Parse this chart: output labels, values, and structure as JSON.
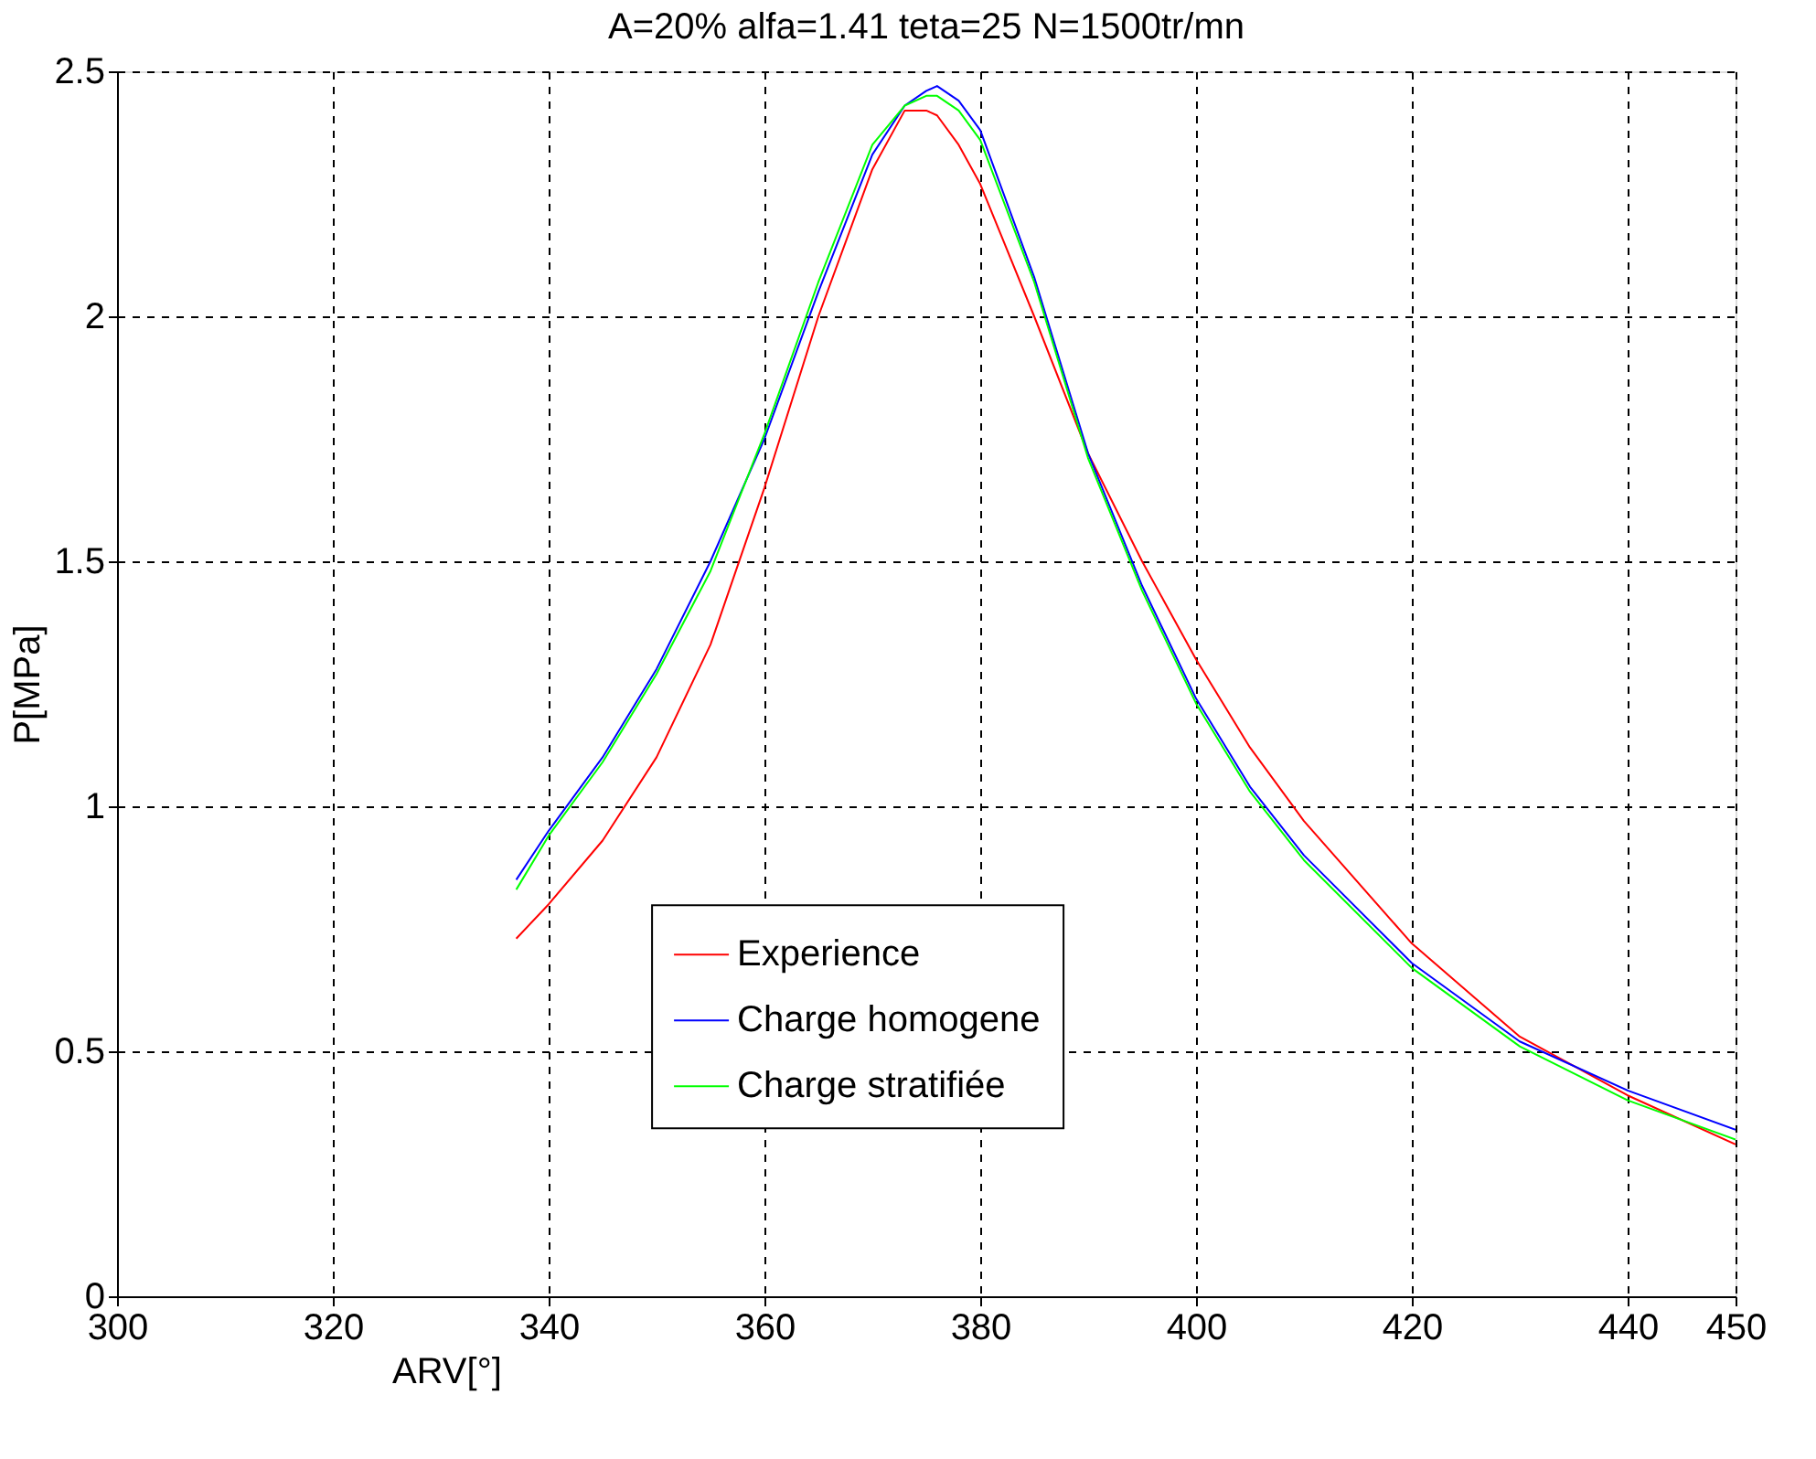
{
  "chart_data": {
    "type": "line",
    "title": "A=20% alfa=1.41 teta=25 N=1500tr/mn",
    "xlabel": "ARV[°]",
    "ylabel": "P[MPa]",
    "xlim": [
      300,
      450
    ],
    "xticks": [
      300,
      320,
      340,
      360,
      380,
      400,
      420,
      440,
      450
    ],
    "ylim": [
      0,
      2.5
    ],
    "yticks": [
      0,
      0.5,
      1,
      1.5,
      2,
      2.5
    ],
    "grid": true,
    "legend": "bottom",
    "line_style": "solid",
    "marker": "none",
    "x": [
      337,
      340,
      345,
      350,
      355,
      360,
      365,
      370,
      373,
      375,
      376,
      378,
      380,
      385,
      390,
      395,
      400,
      405,
      410,
      420,
      430,
      440,
      450
    ],
    "series": [
      {
        "name": "Experience",
        "color": "#ff0000",
        "values": [
          0.73,
          0.8,
          0.93,
          1.1,
          1.33,
          1.65,
          2.0,
          2.3,
          2.42,
          2.42,
          2.41,
          2.35,
          2.27,
          2.0,
          1.72,
          1.5,
          1.3,
          1.12,
          0.97,
          0.72,
          0.53,
          0.41,
          0.31
        ]
      },
      {
        "name": "Charge homogene",
        "color": "#0000ff",
        "values": [
          0.85,
          0.95,
          1.1,
          1.28,
          1.5,
          1.75,
          2.05,
          2.33,
          2.43,
          2.46,
          2.47,
          2.44,
          2.38,
          2.08,
          1.72,
          1.45,
          1.22,
          1.04,
          0.9,
          0.68,
          0.52,
          0.42,
          0.34
        ]
      },
      {
        "name": "Charge stratifiée",
        "color": "#00ff00",
        "values": [
          0.83,
          0.94,
          1.09,
          1.27,
          1.48,
          1.76,
          2.07,
          2.35,
          2.43,
          2.45,
          2.45,
          2.42,
          2.36,
          2.07,
          1.71,
          1.44,
          1.21,
          1.03,
          0.89,
          0.67,
          0.51,
          0.4,
          0.32
        ]
      }
    ]
  }
}
